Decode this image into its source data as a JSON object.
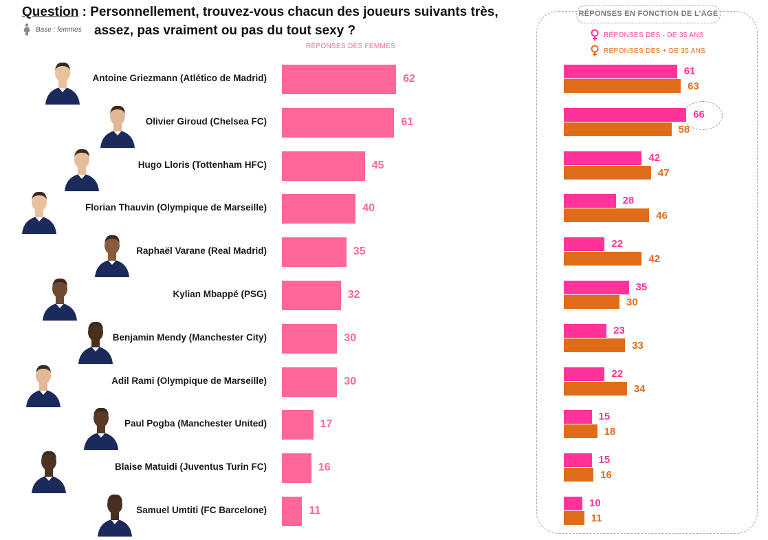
{
  "question": {
    "label": "Question",
    "text_line1": " : Personnellement, trouvez-vous chacun des joueurs suivants très,",
    "text_line2": "assez, pas vraiment ou pas du tout sexy ?"
  },
  "base_note": "Base : femmes",
  "main_column_title": "RÉPONSES DES FEMMES",
  "panel": {
    "title": "RÉPONSES EN FONCTION DE L’AGE",
    "legend": [
      {
        "label": "RÉPONSES DES - DE 35 ANS",
        "color": "#ff3399"
      },
      {
        "label": "RÉPONSES DES + DE 35 ANS",
        "color": "#e06c1a"
      }
    ]
  },
  "colors": {
    "women": "#ff6699",
    "under35": "#ff3399",
    "over35": "#e06c1a"
  },
  "chart_data": [
    {
      "type": "bar",
      "orientation": "horizontal",
      "title": "RÉPONSES DES FEMMES",
      "categories": [
        "Antoine Griezmann (Atlético de Madrid)",
        "Olivier Giroud (Chelsea FC)",
        "Hugo Lloris (Tottenham HFC)",
        "Florian Thauvin (Olympique de Marseille)",
        "Raphaël Varane (Real Madrid)",
        "Kylian Mbappé (PSG)",
        "Benjamin Mendy (Manchester City)",
        "Adil Rami (Olympique de Marseille)",
        "Paul Pogba (Manchester United)",
        "Blaise Matuidi (Juventus Turin FC)",
        "Samuel Umtiti (FC Barcelone)"
      ],
      "values": [
        62,
        61,
        45,
        40,
        35,
        32,
        30,
        30,
        17,
        16,
        11
      ],
      "xlim": [
        0,
        100
      ],
      "grid": false,
      "legend": "none"
    },
    {
      "type": "bar",
      "orientation": "horizontal",
      "title": "RÉPONSES EN FONCTION DE L’AGE",
      "categories": [
        "Antoine Griezmann (Atlético de Madrid)",
        "Olivier Giroud (Chelsea FC)",
        "Hugo Lloris (Tottenham HFC)",
        "Florian Thauvin (Olympique de Marseille)",
        "Raphaël Varane (Real Madrid)",
        "Kylian Mbappé (PSG)",
        "Benjamin Mendy (Manchester City)",
        "Adil Rami (Olympique de Marseille)",
        "Paul Pogba (Manchester United)",
        "Blaise Matuidi (Juventus Turin FC)",
        "Samuel Umtiti (FC Barcelone)"
      ],
      "series": [
        {
          "name": "RÉPONSES DES - DE 35 ANS",
          "values": [
            61,
            66,
            42,
            28,
            22,
            35,
            23,
            22,
            15,
            15,
            10
          ]
        },
        {
          "name": "RÉPONSES DES + DE 35 ANS",
          "values": [
            63,
            58,
            47,
            46,
            42,
            30,
            33,
            34,
            18,
            16,
            11
          ]
        }
      ],
      "highlighted": {
        "series": 0,
        "category": "Olivier Giroud (Chelsea FC)",
        "value": 66
      },
      "xlim": [
        0,
        100
      ],
      "grid": false,
      "legend": "top"
    }
  ]
}
